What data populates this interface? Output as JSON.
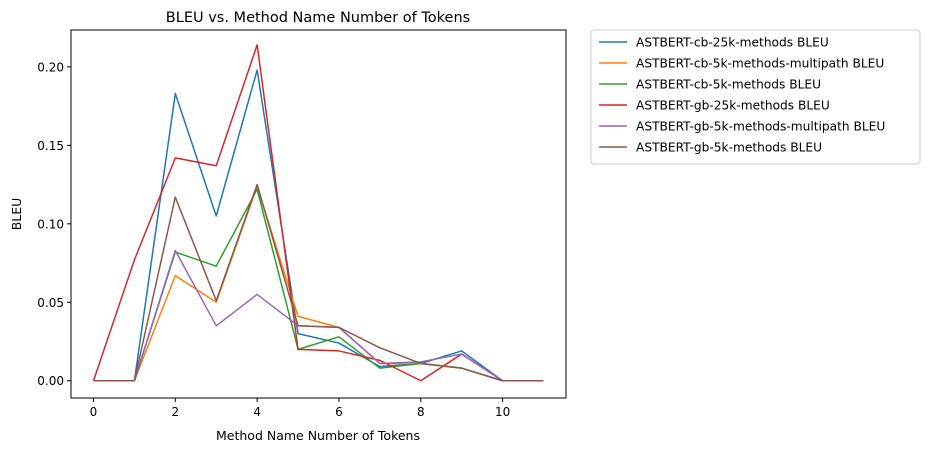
{
  "chart_data": {
    "type": "line",
    "title": "BLEU vs. Method Name Number of Tokens",
    "xlabel": "Method Name Number of Tokens",
    "ylabel": "BLEU",
    "xlim": [
      -0.55,
      11.55
    ],
    "ylim": [
      -0.011,
      0.2235
    ],
    "xticks": [
      0,
      2,
      4,
      6,
      8,
      10
    ],
    "yticks": [
      0.0,
      0.05,
      0.1,
      0.15,
      0.2
    ],
    "ytick_labels": [
      "0.00",
      "0.05",
      "0.10",
      "0.15",
      "0.20"
    ],
    "xtick_labels": [
      "0",
      "2",
      "4",
      "6",
      "8",
      "10"
    ],
    "grid": false,
    "legend_placement": "outside-right-top",
    "x": [
      0,
      1,
      2,
      3,
      4,
      5,
      6,
      7,
      8,
      9,
      10,
      11
    ],
    "series": [
      {
        "name": "ASTBERT-cb-25k-methods BLEU",
        "color": "#1f77b4",
        "values": [
          0,
          0,
          0.183,
          0.105,
          0.198,
          0.03,
          0.024,
          0.009,
          0.011,
          0.019,
          0,
          0
        ]
      },
      {
        "name": "ASTBERT-cb-5k-methods-multipath BLEU",
        "color": "#ff7f0e",
        "values": [
          0,
          0,
          0.067,
          0.05,
          0.124,
          0.041,
          0.034,
          0.011,
          0.011,
          0.008,
          0,
          0
        ]
      },
      {
        "name": "ASTBERT-cb-5k-methods BLEU",
        "color": "#2ca02c",
        "values": [
          0,
          0,
          0.082,
          0.073,
          0.122,
          0.02,
          0.028,
          0.008,
          0.011,
          0.008,
          0,
          0
        ]
      },
      {
        "name": "ASTBERT-gb-25k-methods BLEU",
        "color": "#d62728",
        "values": [
          0,
          0.077,
          0.142,
          0.137,
          0.214,
          0.02,
          0.019,
          0.013,
          0,
          0.017,
          0,
          0
        ]
      },
      {
        "name": "ASTBERT-gb-5k-methods-multipath BLEU",
        "color": "#9467bd",
        "values": [
          0,
          0,
          0.083,
          0.035,
          0.055,
          0.035,
          0.034,
          0.011,
          0.012,
          0.017,
          0,
          0
        ]
      },
      {
        "name": "ASTBERT-gb-5k-methods BLEU",
        "color": "#8c564b",
        "values": [
          0,
          0,
          0.117,
          0.051,
          0.125,
          0.035,
          0.034,
          0.021,
          0.011,
          0.008,
          0,
          0
        ]
      }
    ]
  }
}
